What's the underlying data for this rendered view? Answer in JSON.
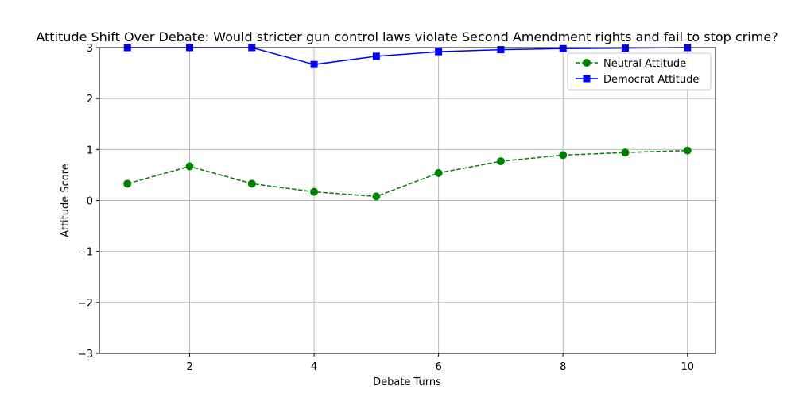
{
  "chart_data": {
    "type": "line",
    "title": "Attitude Shift Over Debate: Would stricter gun control laws violate Second Amendment rights and fail to stop crime?",
    "xlabel": "Debate Turns",
    "ylabel": "Attitude Score",
    "xlim": [
      0.55,
      10.45
    ],
    "ylim": [
      -3,
      3
    ],
    "xticks": [
      2,
      4,
      6,
      8,
      10
    ],
    "xtick_labels": [
      "2",
      "4",
      "6",
      "8",
      "10"
    ],
    "yticks": [
      -3,
      -2,
      -1,
      0,
      1,
      2,
      3
    ],
    "ytick_labels": [
      "−3",
      "−2",
      "−1",
      "0",
      "1",
      "2",
      "3"
    ],
    "grid": true,
    "legend_position": "upper-right",
    "x": [
      1,
      2,
      3,
      4,
      5,
      6,
      7,
      8,
      9,
      10
    ],
    "series": [
      {
        "name": "Neutral Attitude",
        "values": [
          0.33,
          0.67,
          0.33,
          0.17,
          0.08,
          0.54,
          0.77,
          0.89,
          0.94,
          0.98
        ],
        "color": "#008000",
        "line_style": "dashed",
        "marker": "circle"
      },
      {
        "name": "Democrat Attitude",
        "values": [
          3.0,
          3.0,
          3.0,
          2.67,
          2.83,
          2.92,
          2.96,
          2.98,
          2.99,
          3.0
        ],
        "color": "#0000ff",
        "line_style": "solid",
        "marker": "square"
      }
    ]
  }
}
